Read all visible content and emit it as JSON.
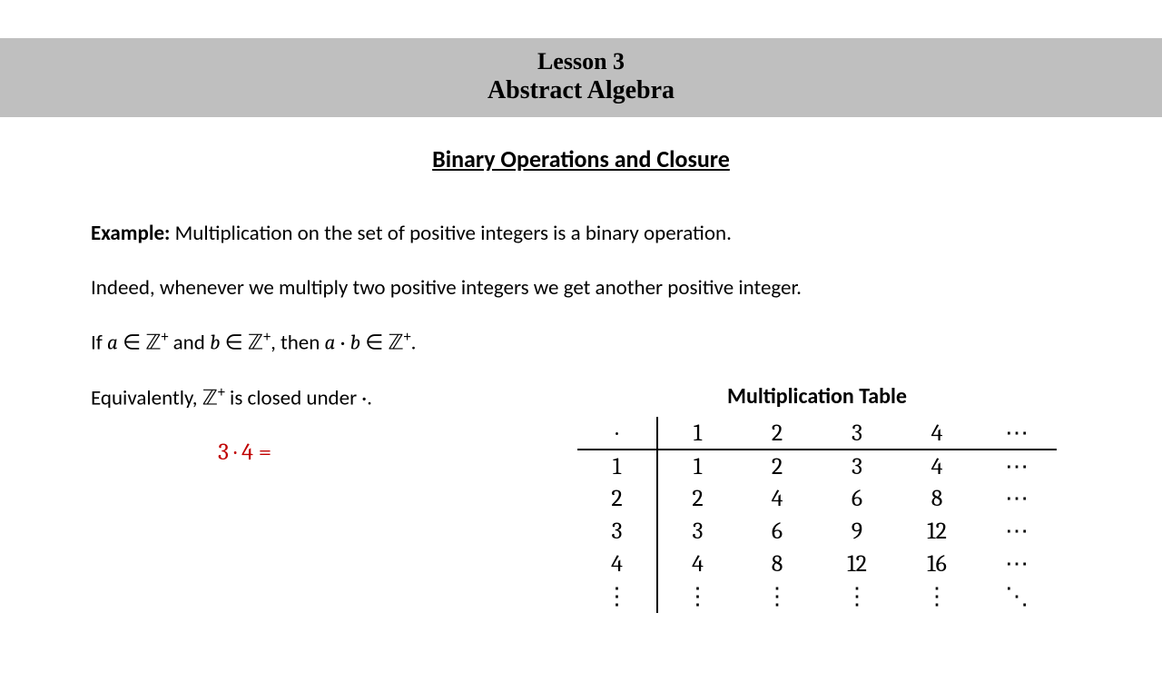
{
  "header": {
    "line1": "Lesson 3",
    "line2": "Abstract Algebra"
  },
  "section_title": "Binary Operations and Closure",
  "example": {
    "label": "Example:",
    "text": " Multiplication on the set of positive integers is a binary operation."
  },
  "line2": "Indeed, whenever we multiply two positive integers we get another positive integer.",
  "line3": {
    "p1": "If ",
    "a": "a",
    "in": " ∈ ",
    "Z": "ℤ",
    "plus": "+",
    "and": " and ",
    "b": "b",
    "then": ", then ",
    "dot": " · ",
    "period": "."
  },
  "line4": {
    "p1": "Equivalently, ",
    "Z": "ℤ",
    "plus": "+",
    "p2": " is closed under ·."
  },
  "red_eq": "3 · 4 =",
  "table": {
    "title": "Multiplication Table",
    "corner": "·",
    "col_headers": [
      "1",
      "2",
      "3",
      "4",
      "⋯"
    ],
    "rows": [
      {
        "hdr": "1",
        "cells": [
          "1",
          "2",
          "3",
          "4",
          "⋯"
        ]
      },
      {
        "hdr": "2",
        "cells": [
          "2",
          "4",
          "6",
          "8",
          "⋯"
        ]
      },
      {
        "hdr": "3",
        "cells": [
          "3",
          "6",
          "9",
          "12",
          "⋯"
        ]
      },
      {
        "hdr": "4",
        "cells": [
          "4",
          "8",
          "12",
          "16",
          "⋯"
        ]
      },
      {
        "hdr": "⋮",
        "cells": [
          "⋮",
          "⋮",
          "⋮",
          "⋮",
          "⋱"
        ]
      }
    ]
  },
  "colors": {
    "header_bg": "#bfbfbf",
    "red": "#c00000",
    "text": "#000000",
    "bg": "#ffffff"
  }
}
